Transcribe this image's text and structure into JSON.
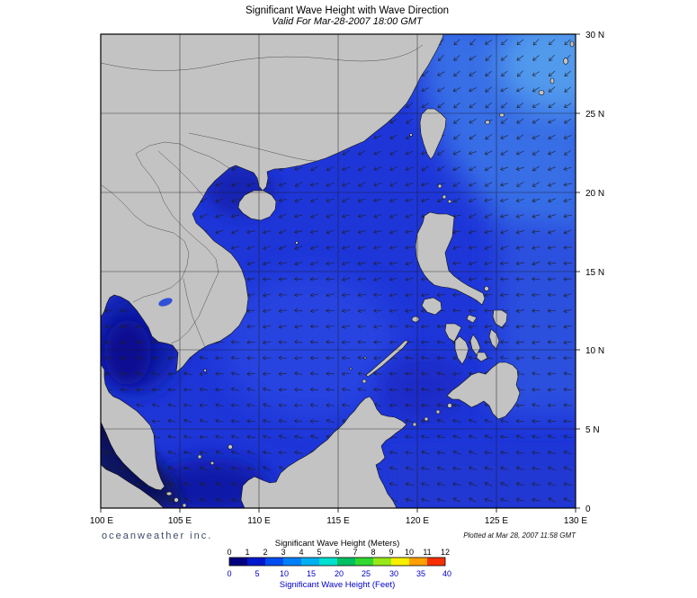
{
  "header": {
    "title": "Significant Wave Height with Wave Direction",
    "subtitle": "Valid For Mar-28-2007 18:00 GMT"
  },
  "footer": {
    "branding": "oceanweather inc.",
    "plotted": "Plotted at Mar 28, 2007 11:58 GMT"
  },
  "axes": {
    "extent": {
      "lon": [
        100,
        130
      ],
      "lat": [
        0,
        30
      ]
    },
    "lon": [
      "100 E",
      "105 E",
      "110 E",
      "115 E",
      "120 E",
      "125 E",
      "130 E"
    ],
    "lat": [
      "30 N",
      "25 N",
      "20 N",
      "15 N",
      "10 N",
      "5 N",
      "0"
    ]
  },
  "colorbar": {
    "meters_label": "Significant Wave Height (Meters)",
    "feet_label": "Significant Wave Height (Feet)",
    "meters_ticks": [
      0,
      1,
      2,
      3,
      4,
      5,
      6,
      7,
      8,
      9,
      10,
      11,
      12
    ],
    "feet_ticks": [
      0,
      5,
      10,
      15,
      20,
      25,
      30,
      35,
      40
    ],
    "colors": [
      "#000080",
      "#0018cc",
      "#004cf0",
      "#0080f8",
      "#00b0f0",
      "#00e0d0",
      "#00c060",
      "#30d830",
      "#98e818",
      "#f8f000",
      "#ffa000",
      "#f83000"
    ],
    "feet_text_color": "#0000c8"
  },
  "map": {
    "land_color": "#c3c3c3",
    "ocean_base": "#1e36d8",
    "arrows": {
      "color": "#1f1f1f",
      "stroke_width": 0.7,
      "opacity": 0.85,
      "cols": 30,
      "rows": 30,
      "angle_base": 138,
      "angle_per_deg": 2.1,
      "jitter": 10
    }
  }
}
